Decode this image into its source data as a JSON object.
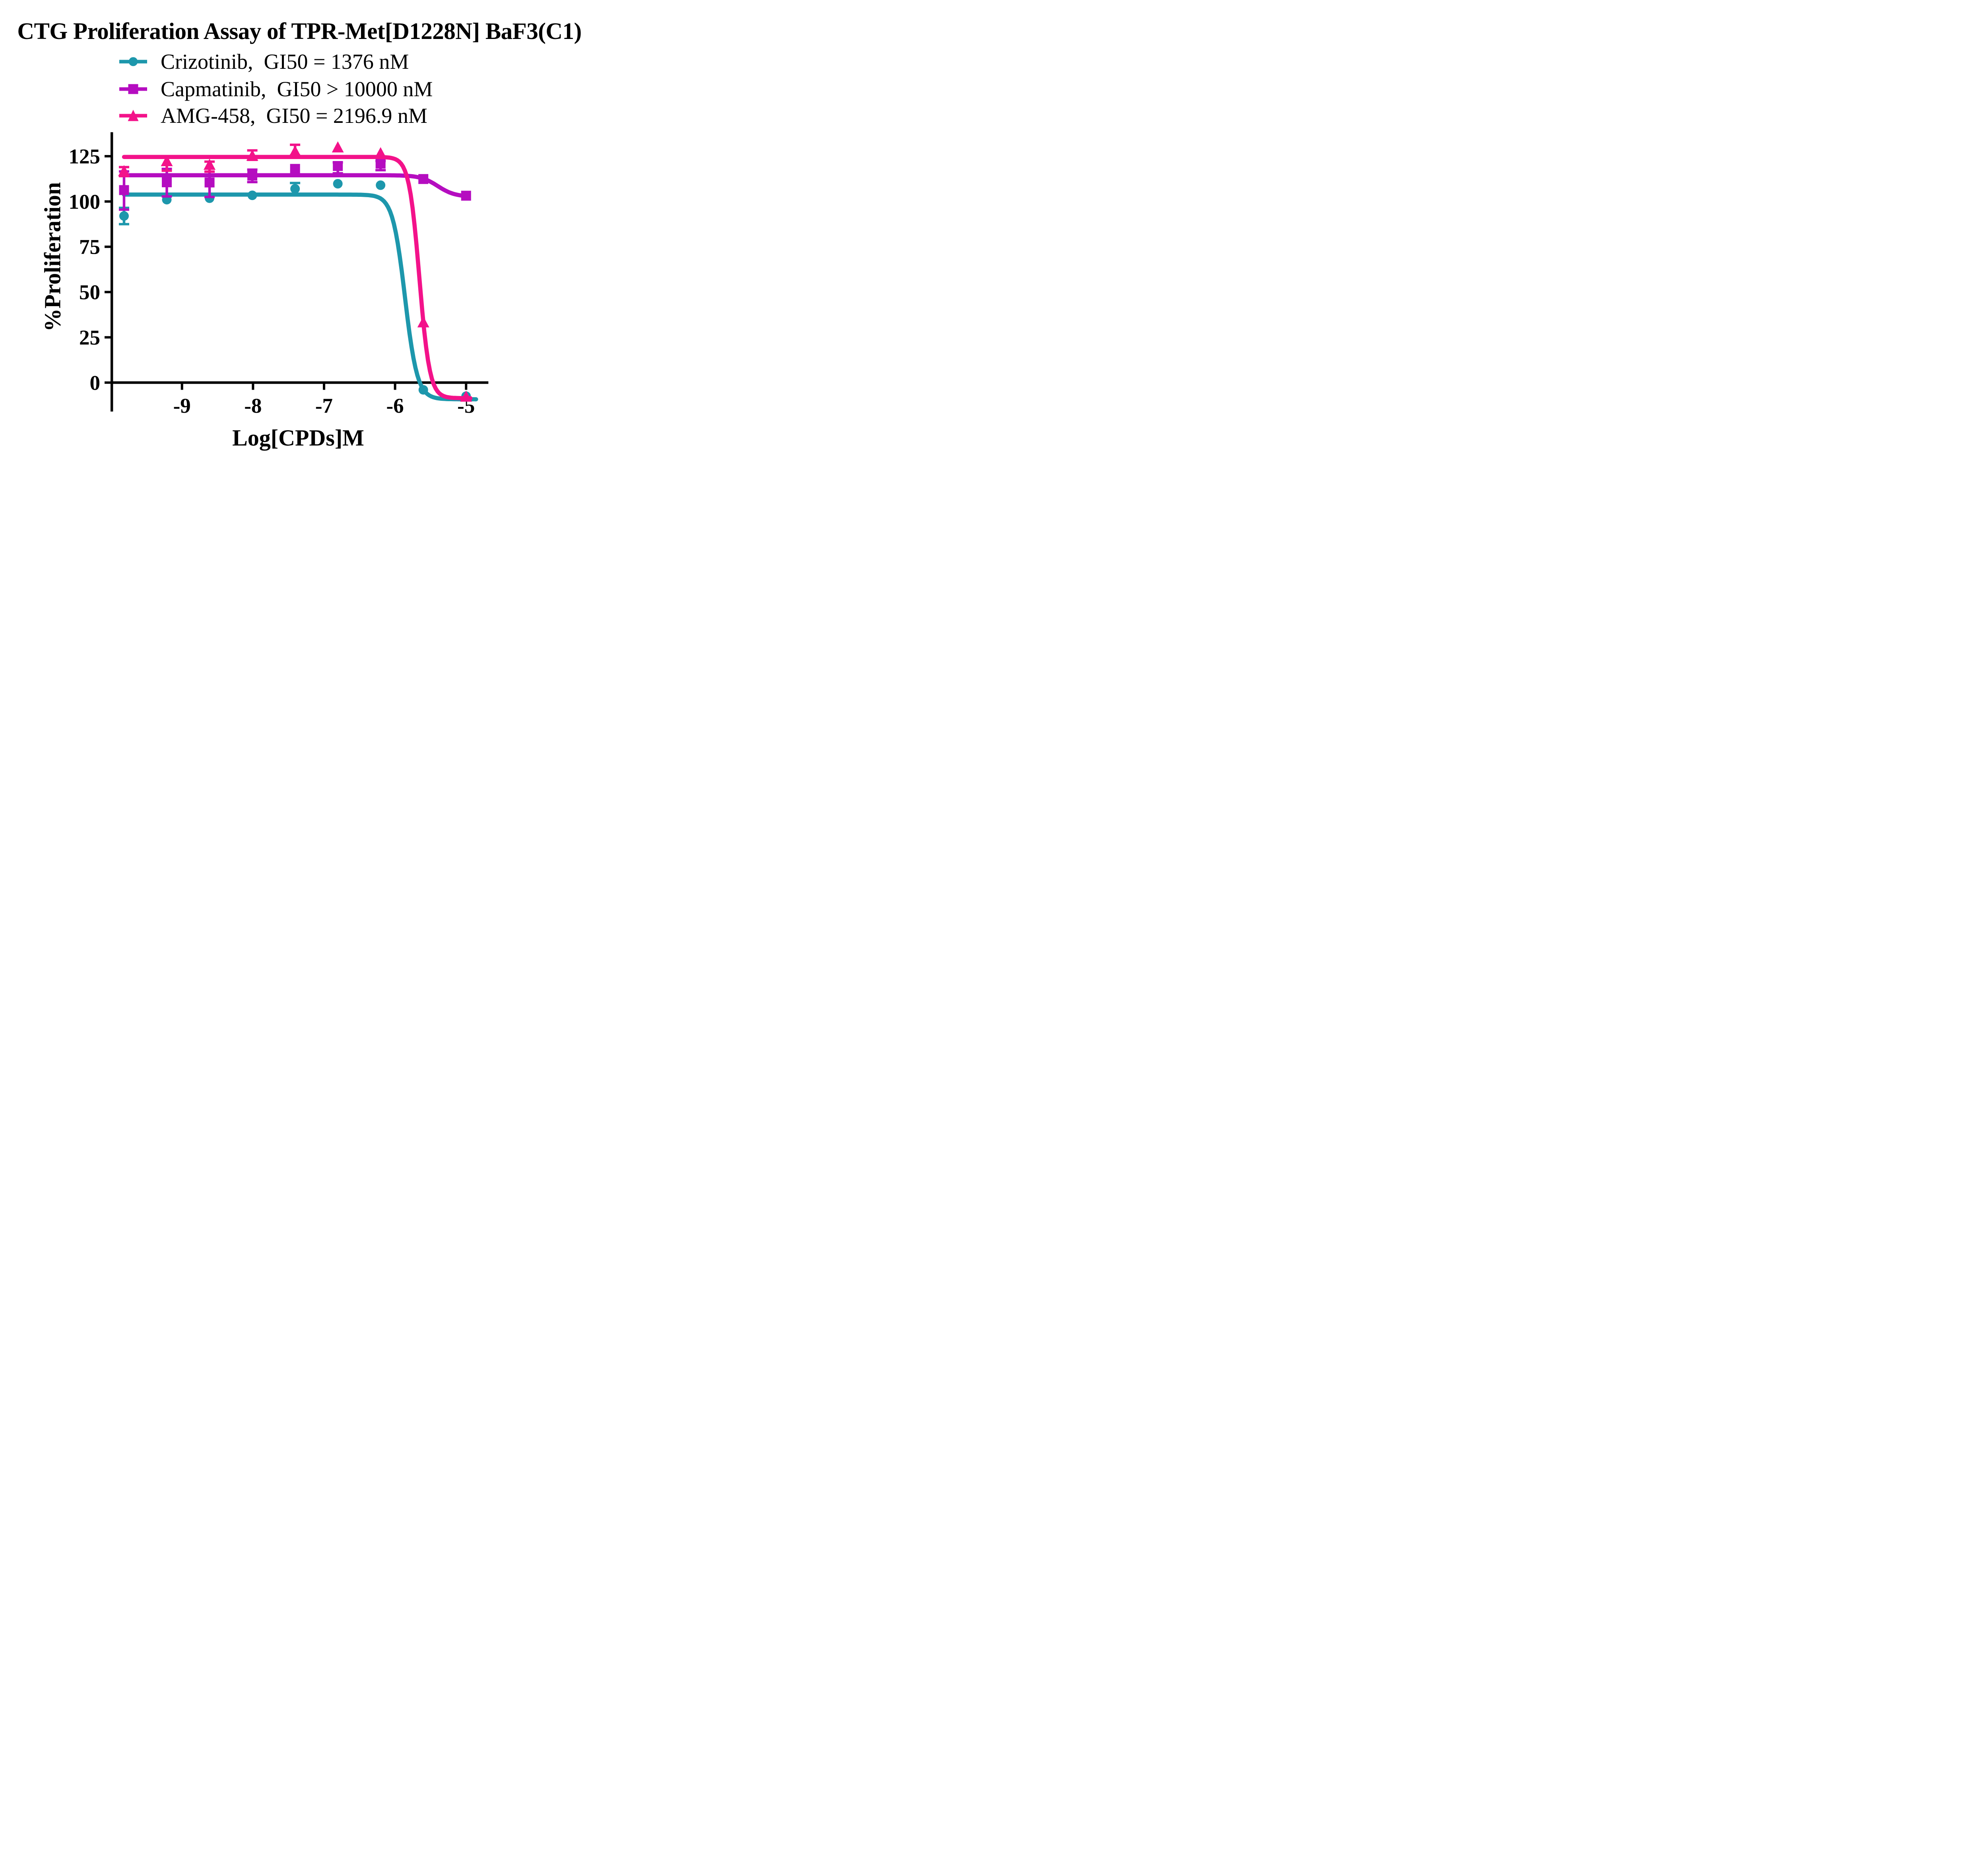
{
  "title": "CTG Proliferation Assay of TPR-Met[D1228N] BaF3(C1)",
  "legend": {
    "items": [
      {
        "label": "Crizotinib,  GI50 = 1376 nM"
      },
      {
        "label": "Capmatinib,  GI50 > 10000 nM"
      },
      {
        "label": "AMG-458,  GI50 = 2196.9 nM"
      }
    ]
  },
  "chart_data": {
    "type": "line",
    "title": "CTG Proliferation Assay of TPR-Met[D1228N] BaF3(C1)",
    "xlabel": "Log[CPDs]M",
    "ylabel": "%Proliferation",
    "x_ticks": [
      -9,
      -8,
      -7,
      -6,
      -5
    ],
    "y_ticks": [
      0,
      25,
      50,
      75,
      100,
      125
    ],
    "xlim": [
      -9.99,
      -4.66
    ],
    "ylim": [
      -16,
      138
    ],
    "grid": false,
    "legend_position": "top-left",
    "x": [
      -9.816,
      -9.214,
      -8.612,
      -8.01,
      -7.408,
      -6.806,
      -6.204,
      -5.602,
      -5.0
    ],
    "series": [
      {
        "name": "Crizotinib",
        "gi50_text": "GI50 = 1376 nM",
        "color": "#1D97AC",
        "marker": "circle",
        "y": [
          92,
          101,
          101.8,
          103.4,
          107,
          109.8,
          109,
          -4,
          -7.5
        ],
        "err_lo": [
          4.5,
          0,
          0,
          0,
          3.2,
          0,
          0,
          0,
          0
        ],
        "err_hi": [
          4.5,
          0,
          0,
          0,
          3.2,
          0,
          0,
          0,
          0
        ],
        "fit": {
          "top": 103.8,
          "bottom": -9.2,
          "logec50": -5.861,
          "hill": 5.0,
          "x_start": -9.816,
          "x_end": -4.86
        }
      },
      {
        "name": "Capmatinib",
        "gi50_text": "GI50 > 10000 nM",
        "color": "#B50DC0",
        "marker": "square",
        "y": [
          106.3,
          110.6,
          110.5,
          114.3,
          118.0,
          119.6,
          120.9,
          112.4,
          103.2
        ],
        "err_lo": [
          10.8,
          7.8,
          8.0,
          3.6,
          0,
          4.0,
          3.6,
          0,
          0
        ],
        "err_hi": [
          10.3,
          7.4,
          6.0,
          3.3,
          0,
          2.0,
          1.5,
          0,
          0
        ],
        "fit": {
          "top": 114.5,
          "bottom": 102.6,
          "logec50": -5.4,
          "hill": 3.6,
          "x_start": -9.816,
          "x_end": -5.0
        }
      },
      {
        "name": "AMG-458",
        "gi50_text": "GI50 = 2196.9 nM",
        "color": "#F3128A",
        "marker": "triangle",
        "y": [
          116.5,
          122.0,
          120.0,
          125.0,
          127.4,
          129.6,
          126.4,
          33,
          -8
        ],
        "err_lo": [
          2.5,
          5.0,
          3.5,
          2.0,
          2.0,
          0,
          0,
          0,
          0
        ],
        "err_hi": [
          2.5,
          2.5,
          2.0,
          3.2,
          3.9,
          0,
          0,
          0,
          0
        ],
        "fit": {
          "top": 124.6,
          "bottom": -8.6,
          "logec50": -5.658,
          "hill": 6.0,
          "x_start": -9.816,
          "x_end": -4.94
        }
      }
    ]
  }
}
